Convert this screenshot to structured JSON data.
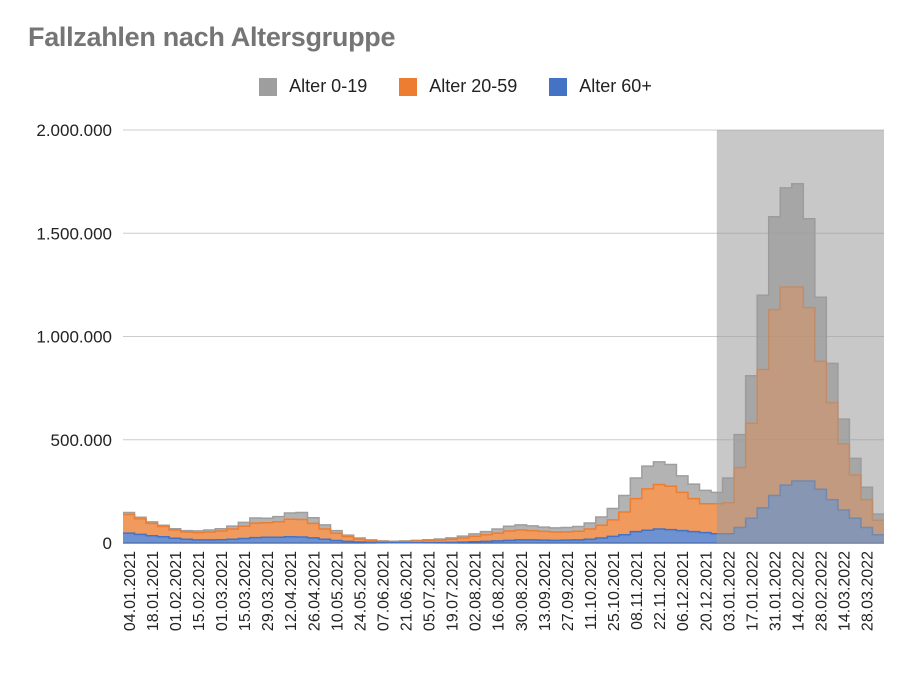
{
  "chart_data": {
    "type": "area",
    "stacked": true,
    "title": "Fallzahlen nach Altersgruppe",
    "xlabel": "",
    "ylabel": "",
    "ylim": [
      0,
      2000000
    ],
    "yticks": [
      {
        "value": 0,
        "label": "0"
      },
      {
        "value": 500000,
        "label": "500.000"
      },
      {
        "value": 1000000,
        "label": "1.000.000"
      },
      {
        "value": 1500000,
        "label": "1.500.000"
      },
      {
        "value": 2000000,
        "label": "2.000.000"
      }
    ],
    "grid": true,
    "legend_position": "top",
    "x_tick_labels": [
      "04.01.2021",
      "18.01.2021",
      "01.02.2021",
      "15.02.2021",
      "01.03.2021",
      "15.03.2021",
      "29.03.2021",
      "12.04.2021",
      "26.04.2021",
      "10.05.2021",
      "24.05.2021",
      "07.06.2021",
      "21.06.2021",
      "05.07.2021",
      "19.07.2021",
      "02.08.2021",
      "16.08.2021",
      "30.08.2021",
      "13.09.2021",
      "27.09.2021",
      "11.10.2021",
      "25.10.2021",
      "08.11.2021",
      "22.11.2021",
      "06.12.2021",
      "20.12.2021",
      "03.01.2022",
      "17.01.2022",
      "31.01.2022",
      "14.02.2022",
      "28.02.2022",
      "14.03.2022",
      "28.03.2022"
    ],
    "x": [
      "04.01.2021",
      "11.01.2021",
      "18.01.2021",
      "25.01.2021",
      "01.02.2021",
      "08.02.2021",
      "15.02.2021",
      "22.02.2021",
      "01.03.2021",
      "08.03.2021",
      "15.03.2021",
      "22.03.2021",
      "29.03.2021",
      "05.04.2021",
      "12.04.2021",
      "19.04.2021",
      "26.04.2021",
      "03.05.2021",
      "10.05.2021",
      "17.05.2021",
      "24.05.2021",
      "31.05.2021",
      "07.06.2021",
      "14.06.2021",
      "21.06.2021",
      "28.06.2021",
      "05.07.2021",
      "12.07.2021",
      "19.07.2021",
      "26.07.2021",
      "02.08.2021",
      "09.08.2021",
      "16.08.2021",
      "23.08.2021",
      "30.08.2021",
      "06.09.2021",
      "13.09.2021",
      "20.09.2021",
      "27.09.2021",
      "04.10.2021",
      "11.10.2021",
      "18.10.2021",
      "25.10.2021",
      "01.11.2021",
      "08.11.2021",
      "15.11.2021",
      "22.11.2021",
      "29.11.2021",
      "06.12.2021",
      "13.12.2021",
      "20.12.2021",
      "27.12.2021",
      "03.01.2022",
      "10.01.2022",
      "17.01.2022",
      "24.01.2022",
      "31.01.2022",
      "07.02.2022",
      "14.02.2022",
      "21.02.2022",
      "28.02.2022",
      "07.03.2022",
      "14.03.2022",
      "21.03.2022",
      "28.03.2022",
      "04.04.2022"
    ],
    "series": [
      {
        "name": "Alter 60+",
        "color": "#4472C4",
        "values": [
          48000,
          42000,
          35000,
          30000,
          23000,
          18000,
          15000,
          15000,
          16000,
          18000,
          22000,
          26000,
          28000,
          28000,
          30000,
          29000,
          25000,
          18000,
          12000,
          8000,
          5000,
          3000,
          2000,
          1500,
          1500,
          1500,
          2000,
          2500,
          3000,
          4000,
          6000,
          8000,
          10000,
          13000,
          15000,
          15000,
          14000,
          13000,
          14000,
          15000,
          18000,
          24000,
          32000,
          40000,
          55000,
          62000,
          68000,
          65000,
          60000,
          55000,
          50000,
          45000,
          45000,
          75000,
          120000,
          170000,
          230000,
          280000,
          300000,
          300000,
          260000,
          210000,
          160000,
          120000,
          75000,
          40000
        ]
      },
      {
        "name": "Alter 20-59",
        "color": "#ED7D31",
        "values": [
          90000,
          75000,
          60000,
          50000,
          40000,
          35000,
          35000,
          38000,
          42000,
          50000,
          60000,
          70000,
          70000,
          75000,
          85000,
          85000,
          70000,
          50000,
          35000,
          22000,
          14000,
          9000,
          6000,
          5000,
          6000,
          8000,
          10000,
          12000,
          15000,
          20000,
          26000,
          32000,
          38000,
          45000,
          48000,
          45000,
          42000,
          40000,
          40000,
          42000,
          50000,
          62000,
          80000,
          110000,
          160000,
          200000,
          215000,
          210000,
          185000,
          160000,
          140000,
          145000,
          150000,
          290000,
          460000,
          670000,
          900000,
          960000,
          940000,
          840000,
          620000,
          470000,
          320000,
          210000,
          135000,
          70000
        ]
      },
      {
        "name": "Alter 0-19",
        "color": "#9E9E9E",
        "values": [
          10000,
          8000,
          7000,
          6000,
          6000,
          7000,
          9000,
          10000,
          11000,
          14000,
          18000,
          25000,
          22000,
          25000,
          30000,
          34000,
          27000,
          20000,
          13000,
          8000,
          5000,
          3000,
          2000,
          2000,
          2500,
          3000,
          4000,
          5000,
          7000,
          9000,
          12000,
          15000,
          20000,
          23000,
          25000,
          23000,
          21000,
          20000,
          21000,
          23000,
          29000,
          40000,
          55000,
          80000,
          100000,
          110000,
          110000,
          105000,
          80000,
          70000,
          65000,
          55000,
          120000,
          160000,
          230000,
          360000,
          450000,
          480000,
          500000,
          430000,
          310000,
          190000,
          120000,
          80000,
          60000,
          30000
        ]
      }
    ]
  },
  "legend": [
    {
      "label": "Alter 0-19",
      "color": "#9E9E9E"
    },
    {
      "label": "Alter 20-59",
      "color": "#ED7D31"
    },
    {
      "label": "Alter 60+",
      "color": "#4472C4"
    }
  ]
}
